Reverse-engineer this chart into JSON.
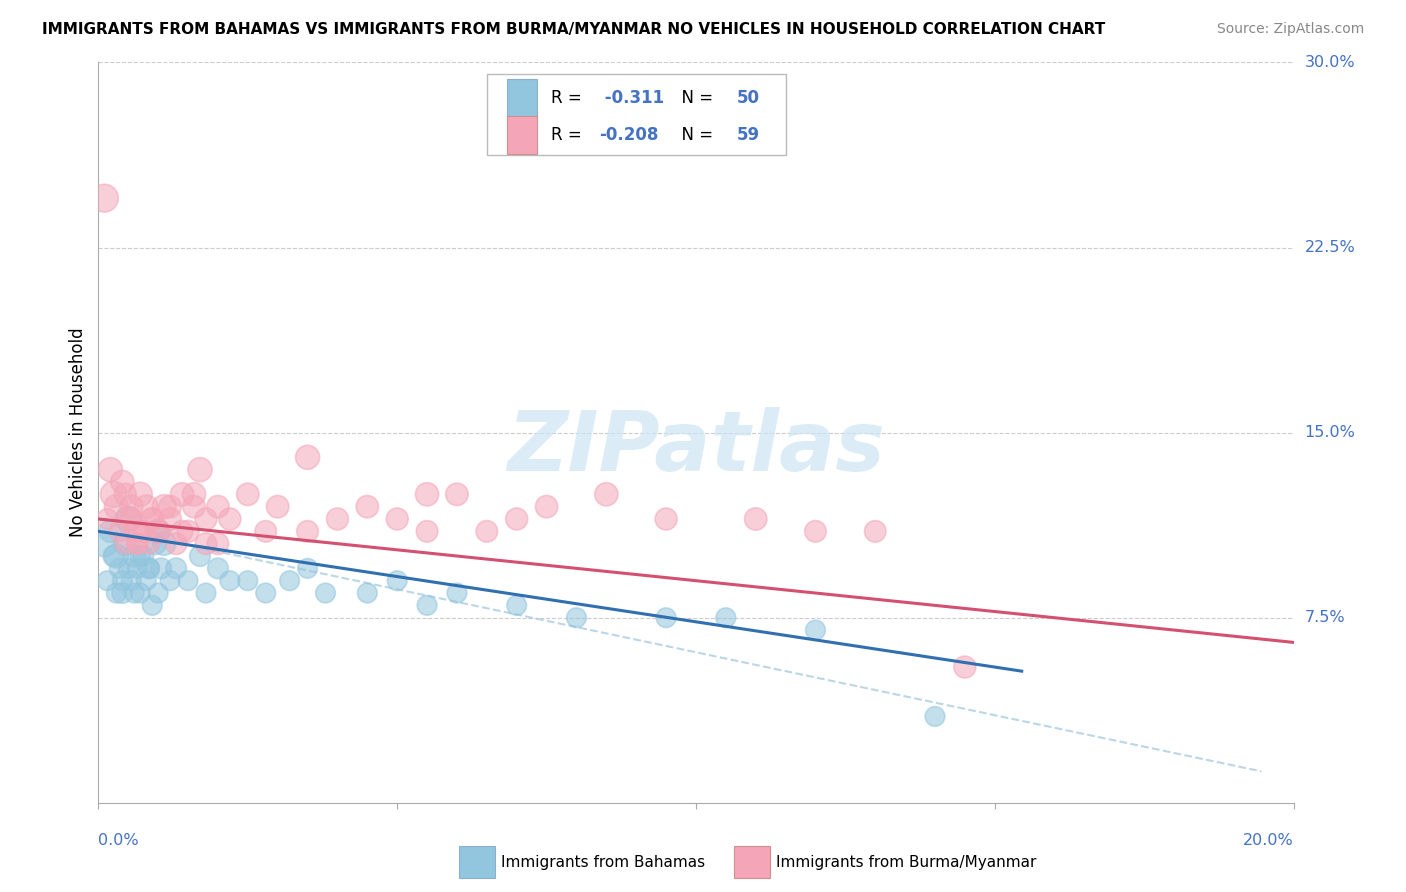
{
  "title": "IMMIGRANTS FROM BAHAMAS VS IMMIGRANTS FROM BURMA/MYANMAR NO VEHICLES IN HOUSEHOLD CORRELATION CHART",
  "source": "Source: ZipAtlas.com",
  "ylabel": "No Vehicles in Household",
  "x_range": [
    0.0,
    20.0
  ],
  "y_range": [
    0.0,
    30.0
  ],
  "y_ticks": [
    7.5,
    15.0,
    22.5,
    30.0
  ],
  "y_tick_labels": [
    "7.5%",
    "15.0%",
    "22.5%",
    "30.0%"
  ],
  "legend1_r": "-0.311",
  "legend1_n": "50",
  "legend2_r": "-0.208",
  "legend2_n": "59",
  "color_blue": "#92c5de",
  "color_pink": "#f4a6b8",
  "color_blue_line": "#3070b0",
  "color_pink_line": "#d45070",
  "color_dashed": "#aacce0",
  "label_bahamas": "Immigrants from Bahamas",
  "label_burma": "Immigrants from Burma/Myanmar",
  "watermark_text": "ZIPatlas",
  "tick_color": "#4472c4",
  "grid_color": "#cccccc",
  "spine_color": "#aaaaaa",
  "bahamas_x": [
    0.1,
    0.15,
    0.2,
    0.3,
    0.35,
    0.4,
    0.45,
    0.5,
    0.55,
    0.6,
    0.65,
    0.7,
    0.75,
    0.8,
    0.85,
    0.9,
    0.95,
    1.0,
    1.05,
    1.1,
    1.2,
    1.3,
    1.5,
    1.7,
    1.8,
    2.0,
    2.2,
    2.5,
    2.8,
    3.2,
    3.5,
    3.8,
    4.5,
    5.0,
    5.5,
    6.0,
    7.0,
    8.0,
    9.5,
    10.5,
    12.0,
    14.0,
    0.25,
    0.3,
    0.4,
    0.5,
    0.6,
    0.7,
    0.85,
    1.0
  ],
  "bahamas_y": [
    10.5,
    9.0,
    11.0,
    10.0,
    9.5,
    8.5,
    10.5,
    11.5,
    9.0,
    10.0,
    9.5,
    8.5,
    10.0,
    9.0,
    9.5,
    8.0,
    10.5,
    11.0,
    9.5,
    10.5,
    9.0,
    9.5,
    9.0,
    10.0,
    8.5,
    9.5,
    9.0,
    9.0,
    8.5,
    9.0,
    9.5,
    8.5,
    8.5,
    9.0,
    8.0,
    8.5,
    8.0,
    7.5,
    7.5,
    7.5,
    7.0,
    3.5,
    10.0,
    8.5,
    9.0,
    9.5,
    8.5,
    10.0,
    9.5,
    8.5
  ],
  "bahamas_size": [
    350,
    200,
    250,
    300,
    200,
    220,
    280,
    350,
    200,
    250,
    200,
    200,
    220,
    200,
    220,
    200,
    250,
    300,
    220,
    280,
    200,
    220,
    200,
    220,
    200,
    220,
    200,
    200,
    200,
    200,
    200,
    200,
    200,
    200,
    200,
    200,
    200,
    200,
    200,
    200,
    200,
    200,
    220,
    200,
    200,
    200,
    200,
    200,
    200,
    200
  ],
  "burma_x": [
    0.1,
    0.2,
    0.25,
    0.3,
    0.4,
    0.45,
    0.5,
    0.55,
    0.6,
    0.65,
    0.7,
    0.75,
    0.8,
    0.85,
    0.9,
    1.0,
    1.1,
    1.2,
    1.3,
    1.4,
    1.5,
    1.6,
    1.7,
    1.8,
    2.0,
    2.2,
    2.5,
    2.8,
    3.0,
    3.5,
    4.0,
    4.5,
    5.0,
    5.5,
    6.0,
    6.5,
    7.0,
    7.5,
    8.5,
    9.5,
    11.0,
    12.0,
    13.0,
    14.5,
    0.35,
    0.45,
    0.55,
    0.65,
    0.75,
    0.9,
    1.0,
    1.2,
    1.4,
    1.6,
    1.8,
    2.0,
    0.15,
    3.5,
    5.5
  ],
  "burma_y": [
    24.5,
    13.5,
    12.5,
    12.0,
    13.0,
    12.5,
    11.5,
    12.0,
    11.0,
    10.5,
    12.5,
    11.0,
    12.0,
    10.5,
    11.5,
    11.0,
    12.0,
    11.5,
    10.5,
    12.5,
    11.0,
    12.5,
    13.5,
    10.5,
    12.0,
    11.5,
    12.5,
    11.0,
    12.0,
    11.0,
    11.5,
    12.0,
    11.5,
    11.0,
    12.5,
    11.0,
    11.5,
    12.0,
    12.5,
    11.5,
    11.5,
    11.0,
    11.0,
    5.5,
    11.0,
    10.5,
    11.5,
    10.5,
    11.0,
    11.5,
    11.0,
    12.0,
    11.0,
    12.0,
    11.5,
    10.5,
    11.5,
    14.0,
    12.5
  ],
  "burma_size": [
    400,
    300,
    350,
    300,
    280,
    250,
    300,
    280,
    250,
    220,
    300,
    250,
    280,
    220,
    260,
    280,
    300,
    260,
    240,
    280,
    250,
    280,
    300,
    240,
    260,
    250,
    260,
    240,
    260,
    240,
    250,
    260,
    250,
    240,
    260,
    240,
    250,
    260,
    280,
    250,
    260,
    240,
    240,
    250,
    220,
    220,
    240,
    220,
    230,
    250,
    240,
    260,
    240,
    260,
    250,
    240,
    220,
    300,
    280
  ],
  "bah_line_x0": 0.0,
  "bah_line_y0": 11.0,
  "bah_line_x1": 15.0,
  "bah_line_y1": 5.5,
  "bur_line_x0": 0.0,
  "bur_line_y0": 11.5,
  "bur_line_x1": 20.0,
  "bur_line_y1": 6.5,
  "dash_line_x0": 0.0,
  "dash_line_y0": 11.2,
  "dash_line_x1": 20.0,
  "dash_line_y1": 1.0
}
